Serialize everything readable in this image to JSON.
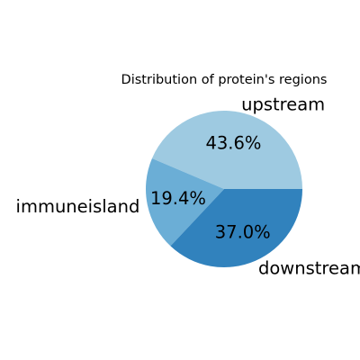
{
  "chart_data": {
    "type": "pie",
    "title": "Distribution of protein's regions",
    "labels": [
      "upstream",
      "immuneisland",
      "downstream"
    ],
    "values": [
      43.6,
      19.4,
      37.0
    ],
    "percent_labels": [
      "43.6%",
      "19.4%",
      "37.0%"
    ],
    "colors": [
      "#9ecae1",
      "#6baed6",
      "#3182bd"
    ],
    "start_angle_deg": 0,
    "direction": "counterclockwise",
    "legend": "none"
  }
}
